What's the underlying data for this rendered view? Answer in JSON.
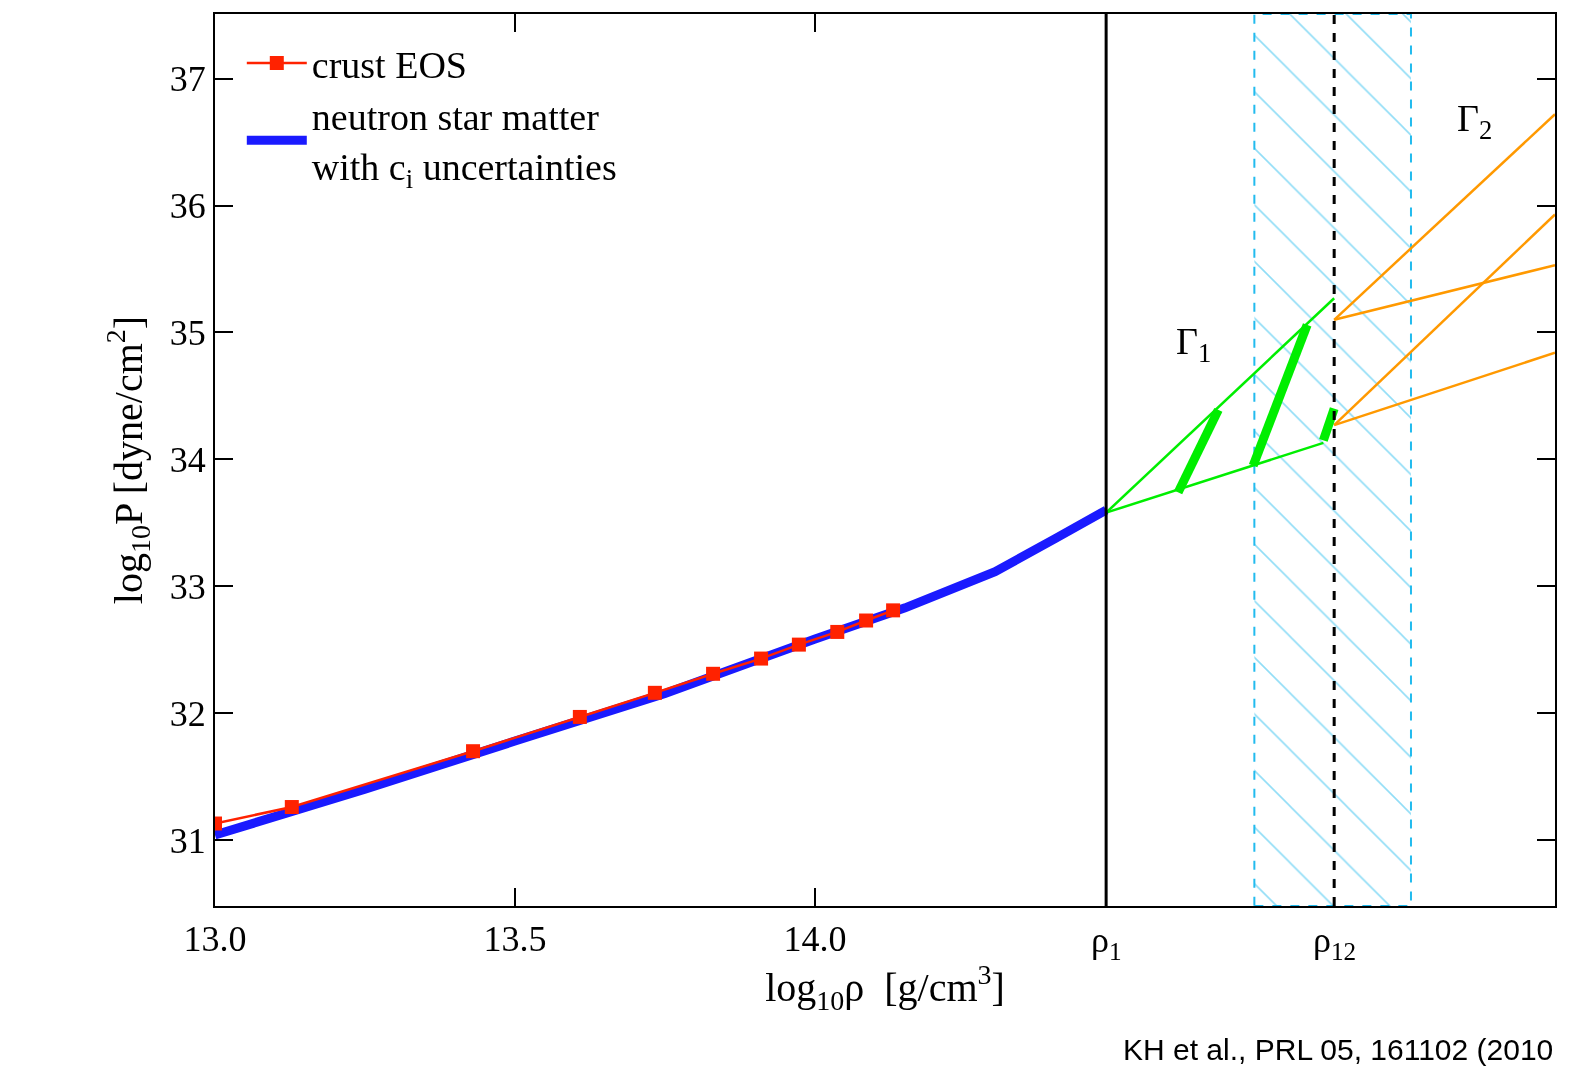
{
  "chart_data": {
    "type": "line",
    "xlabel": "log$_{10}$ρ  [g/cm$^{3}$]",
    "ylabel": "log$_{10}$P [dyne/cm$^{2}$]",
    "xlim": [
      13.0,
      15.233
    ],
    "ylim": [
      30.48,
      37.51
    ],
    "xticks": [
      {
        "value": 13.0,
        "label": "13.0"
      },
      13.5,
      {
        "value": 14.0,
        "label": "14.0"
      }
    ],
    "yticks": [
      31,
      32,
      33,
      34,
      35,
      36,
      37
    ],
    "legend": "top left",
    "series": [
      {
        "name": "crust EOS",
        "color": "#ff2200",
        "marker": "square",
        "x": [
          13.0,
          13.128,
          13.43,
          13.608,
          13.733,
          13.83,
          13.91,
          13.973,
          14.037,
          14.085,
          14.13
        ],
        "values": [
          31.13,
          31.26,
          31.7,
          31.97,
          32.16,
          32.31,
          32.43,
          32.54,
          32.64,
          32.73,
          32.81
        ]
      },
      {
        "name": "neutron star matter\nwith c$_{i}$ uncertainties",
        "color": "#1a1aff",
        "x": [
          13.0,
          13.25,
          13.5,
          13.75,
          14.0,
          14.15,
          14.3,
          14.4,
          14.485
        ],
        "values": [
          31.04,
          31.4,
          31.78,
          32.155,
          32.585,
          32.83,
          33.115,
          33.375,
          33.6
        ]
      },
      {
        "color": "#00ee00",
        "marker": "none",
        "x": [
          14.485,
          14.865
        ],
        "values": [
          33.58,
          35.27
        ]
      },
      {
        "color": "#00ee00",
        "marker": "none",
        "x": [
          14.485,
          14.847
        ],
        "values": [
          33.58,
          34.13
        ]
      },
      {
        "color": "#00ee00",
        "x": [
          14.605,
          14.672
        ],
        "values": [
          33.74,
          34.39
        ]
      },
      {
        "color": "#00ee00",
        "x": [
          14.73,
          14.82
        ],
        "values": [
          33.95,
          35.06
        ]
      },
      {
        "color": "#00ee00",
        "x": [
          14.847,
          14.865
        ],
        "values": [
          34.15,
          34.4
        ]
      },
      {
        "color": "#ff9900",
        "marker": "none",
        "x": [
          14.865,
          15.233
        ],
        "values": [
          35.1,
          36.72
        ]
      },
      {
        "color": "#ff9900",
        "marker": "none",
        "x": [
          14.865,
          15.233
        ],
        "values": [
          35.1,
          35.53
        ]
      },
      {
        "color": "#ff9900",
        "marker": "none",
        "x": [
          14.865,
          15.233
        ],
        "values": [
          34.27,
          35.93
        ]
      },
      {
        "color": "#ff9900",
        "marker": "none",
        "x": [
          14.865,
          15.233
        ],
        "values": [
          34.27,
          34.84
        ]
      }
    ],
    "bands": [
      {
        "axis": "x",
        "from": 14.732,
        "to": 14.993,
        "color": "#22bbee"
      }
    ],
    "ref_lines": [
      {
        "axis": "x",
        "value": 14.485,
        "label": "ρ$_{1}$",
        "color": "#000000",
        "line_style": "solid"
      },
      {
        "axis": "x",
        "value": 14.865,
        "label": "ρ$_{12}$",
        "color": "#000000",
        "line_style": "dashed"
      }
    ],
    "annotations": [
      "Γ$_{1}$",
      "Γ$_{2}$",
      "KH et al., PRL 05, 161102 (2010"
    ]
  }
}
